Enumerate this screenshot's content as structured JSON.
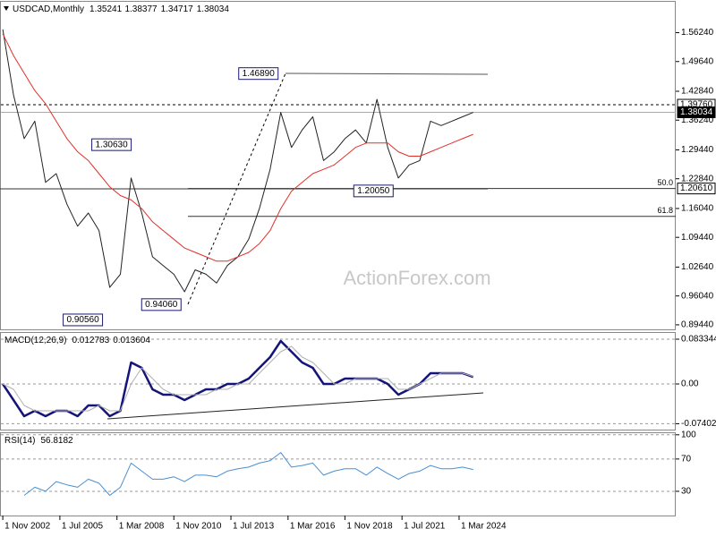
{
  "chart_data": [
    {
      "type": "price",
      "title": "USDCAD,Monthly",
      "ohlc": [
        1.35241,
        1.38377,
        1.34717,
        1.38034
      ],
      "watermark": "ActionForex.com",
      "x": [
        2002.83,
        2003.33,
        2003.83,
        2004.33,
        2004.83,
        2005.33,
        2005.83,
        2006.33,
        2006.83,
        2007.33,
        2007.83,
        2008.33,
        2008.83,
        2009.33,
        2009.83,
        2010.33,
        2010.83,
        2011.33,
        2011.83,
        2012.33,
        2012.83,
        2013.33,
        2013.83,
        2014.33,
        2014.83,
        2015.33,
        2015.83,
        2016.33,
        2016.83,
        2017.33,
        2017.83,
        2018.33,
        2018.83,
        2019.33,
        2019.83,
        2020.33,
        2020.83,
        2021.33,
        2021.83,
        2022.33,
        2022.83,
        2023.33,
        2023.83,
        2024.33,
        2024.83
      ],
      "xlim": [
        2002.7,
        2034.3
      ],
      "ylim": [
        0.884,
        1.633
      ],
      "yticks": [
        {
          "value": 1.5624,
          "label": "1.56240"
        },
        {
          "value": 1.4964,
          "label": "1.49640"
        },
        {
          "value": 1.4284,
          "label": "1.42840"
        },
        {
          "value": 1.3624,
          "label": "1.36240"
        },
        {
          "value": 1.2944,
          "label": "1.29440"
        },
        {
          "value": 1.2284,
          "label": "1.22840"
        },
        {
          "value": 1.1604,
          "label": "1.16040"
        },
        {
          "value": 1.0944,
          "label": "1.09440"
        },
        {
          "value": 1.0264,
          "label": "1.02640"
        },
        {
          "value": 0.9604,
          "label": "0.96040"
        },
        {
          "value": 0.8944,
          "label": "0.89440"
        }
      ],
      "series": [
        {
          "color": "#222222",
          "values": [
            1.57,
            1.42,
            1.32,
            1.36,
            1.22,
            1.24,
            1.17,
            1.12,
            1.15,
            1.11,
            0.98,
            1.01,
            1.23,
            1.15,
            1.05,
            1.03,
            1.01,
            0.97,
            1.02,
            1.01,
            0.99,
            1.03,
            1.05,
            1.09,
            1.16,
            1.25,
            1.38,
            1.3,
            1.34,
            1.37,
            1.27,
            1.29,
            1.32,
            1.34,
            1.31,
            1.41,
            1.3,
            1.23,
            1.26,
            1.27,
            1.36,
            1.35,
            1.36,
            1.37,
            1.38
          ]
        },
        {
          "color": "#e0302a",
          "values": [
            1.56,
            1.51,
            1.47,
            1.43,
            1.4,
            1.36,
            1.32,
            1.29,
            1.27,
            1.24,
            1.21,
            1.19,
            1.18,
            1.16,
            1.13,
            1.11,
            1.09,
            1.07,
            1.06,
            1.05,
            1.04,
            1.04,
            1.05,
            1.06,
            1.08,
            1.11,
            1.16,
            1.2,
            1.22,
            1.24,
            1.25,
            1.26,
            1.28,
            1.3,
            1.31,
            1.31,
            1.31,
            1.29,
            1.28,
            1.28,
            1.29,
            1.3,
            1.31,
            1.32,
            1.33
          ]
        }
      ],
      "annotations": [
        {
          "value": 1.4689,
          "label": "1.46890",
          "x": 2016.04
        },
        {
          "value": 1.3063,
          "label": "1.30630",
          "x": 2009.17
        },
        {
          "value": 0.9056,
          "label": "0.90560",
          "x": 2007.83
        },
        {
          "value": 0.9406,
          "label": "0.94060",
          "x": 2011.5
        },
        {
          "value": 1.2005,
          "label": "1.20050",
          "x": 2021.42
        }
      ],
      "levels": [
        {
          "value": 1.3976,
          "label": "1.39760",
          "style": "dashed"
        },
        {
          "value": 1.38034,
          "label": "1.38034",
          "style": "current"
        },
        {
          "value": 1.2061,
          "label": "1.20610",
          "fib": "50.0"
        },
        {
          "value": 1.1424,
          "fib": "61.8"
        }
      ]
    },
    {
      "type": "macd",
      "title": "MACD(12,26,9)",
      "readings": [
        0.012783,
        0.013604
      ],
      "x": [
        2002.83,
        2003.33,
        2003.83,
        2004.33,
        2004.83,
        2005.33,
        2005.83,
        2006.33,
        2006.83,
        2007.33,
        2007.83,
        2008.33,
        2008.83,
        2009.33,
        2009.83,
        2010.33,
        2010.83,
        2011.33,
        2011.83,
        2012.33,
        2012.83,
        2013.33,
        2013.83,
        2014.33,
        2014.83,
        2015.33,
        2015.83,
        2016.33,
        2016.83,
        2017.33,
        2017.83,
        2018.33,
        2018.83,
        2019.33,
        2019.83,
        2020.33,
        2020.83,
        2021.33,
        2021.83,
        2022.33,
        2022.83,
        2023.33,
        2023.83,
        2024.33,
        2024.83
      ],
      "xlim": [
        2002.7,
        2034.3
      ],
      "ylim": [
        -0.085,
        0.095
      ],
      "yticks": [
        0.083344,
        {
          "value": 0,
          "label": "0.00"
        },
        -0.074026
      ],
      "series": [
        {
          "color": "#14147a",
          "values": [
            0.0,
            -0.03,
            -0.06,
            -0.05,
            -0.06,
            -0.05,
            -0.05,
            -0.06,
            -0.04,
            -0.04,
            -0.06,
            -0.05,
            0.04,
            0.03,
            -0.01,
            -0.02,
            -0.02,
            -0.03,
            -0.02,
            -0.01,
            -0.01,
            0.0,
            0.0,
            0.01,
            0.03,
            0.05,
            0.08,
            0.06,
            0.04,
            0.03,
            0.0,
            0.0,
            0.01,
            0.01,
            0.01,
            0.01,
            0.0,
            -0.02,
            -0.01,
            0.0,
            0.02,
            0.02,
            0.02,
            0.02,
            0.013
          ]
        },
        {
          "color": "#b0b0b0",
          "values": [
            0.0,
            -0.01,
            -0.04,
            -0.05,
            -0.05,
            -0.05,
            -0.05,
            -0.05,
            -0.05,
            -0.04,
            -0.05,
            -0.05,
            0.0,
            0.03,
            0.01,
            -0.01,
            -0.02,
            -0.02,
            -0.02,
            -0.02,
            -0.01,
            -0.01,
            0.0,
            0.0,
            0.02,
            0.04,
            0.06,
            0.07,
            0.05,
            0.04,
            0.02,
            0.0,
            0.0,
            0.01,
            0.01,
            0.01,
            0.01,
            -0.01,
            -0.01,
            0.0,
            0.01,
            0.02,
            0.02,
            0.02,
            0.014
          ]
        }
      ]
    },
    {
      "type": "rsi",
      "title": "RSI(14)",
      "readings": [
        56.8182
      ],
      "x": [
        2002.83,
        2003.33,
        2003.83,
        2004.33,
        2004.83,
        2005.33,
        2005.83,
        2006.33,
        2006.83,
        2007.33,
        2007.83,
        2008.33,
        2008.83,
        2009.33,
        2009.83,
        2010.33,
        2010.83,
        2011.33,
        2011.83,
        2012.33,
        2012.83,
        2013.33,
        2013.83,
        2014.33,
        2014.83,
        2015.33,
        2015.83,
        2016.33,
        2016.83,
        2017.33,
        2017.83,
        2018.33,
        2018.83,
        2019.33,
        2019.83,
        2020.33,
        2020.83,
        2021.33,
        2021.83,
        2022.33,
        2022.83,
        2023.33,
        2023.83,
        2024.33,
        2024.83
      ],
      "xlim": [
        2002.7,
        2034.3
      ],
      "xticks": [
        {
          "value": 2002.83,
          "label": "1 Nov 2002"
        },
        {
          "value": 2005.5,
          "label": "1 Jul 2005"
        },
        {
          "value": 2008.17,
          "label": "1 Mar 2008"
        },
        {
          "value": 2010.83,
          "label": "1 Nov 2010"
        },
        {
          "value": 2013.5,
          "label": "1 Jul 2013"
        },
        {
          "value": 2016.17,
          "label": "1 Mar 2016"
        },
        {
          "value": 2018.83,
          "label": "1 Nov 2018"
        },
        {
          "value": 2021.5,
          "label": "1 Jul 2021"
        },
        {
          "value": 2024.17,
          "label": "1 Mar 2024"
        }
      ],
      "ylim": [
        0,
        102
      ],
      "yticks": [
        100,
        70,
        30
      ],
      "series": [
        {
          "color": "#4a8fd0",
          "values": [
            null,
            null,
            25,
            35,
            30,
            42,
            38,
            35,
            45,
            40,
            25,
            35,
            65,
            55,
            45,
            45,
            48,
            42,
            50,
            50,
            48,
            55,
            58,
            60,
            65,
            68,
            78,
            60,
            62,
            65,
            50,
            55,
            58,
            58,
            50,
            60,
            52,
            45,
            52,
            55,
            62,
            58,
            58,
            60,
            57
          ]
        }
      ]
    }
  ]
}
